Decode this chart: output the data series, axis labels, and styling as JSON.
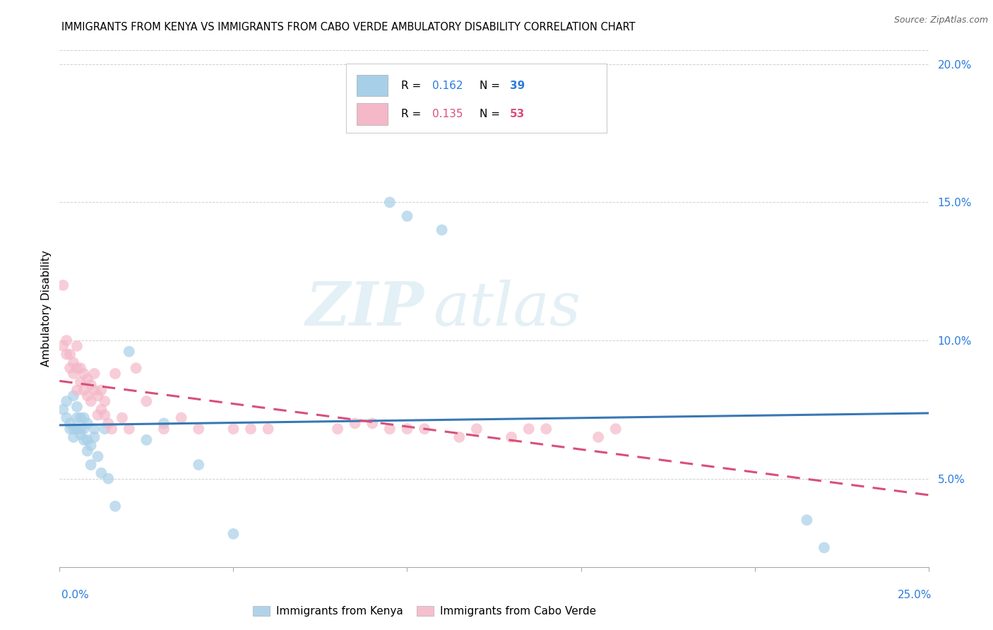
{
  "title": "IMMIGRANTS FROM KENYA VS IMMIGRANTS FROM CABO VERDE AMBULATORY DISABILITY CORRELATION CHART",
  "source": "Source: ZipAtlas.com",
  "ylabel": "Ambulatory Disability",
  "xlim": [
    0.0,
    0.25
  ],
  "ylim": [
    0.018,
    0.205
  ],
  "yticks": [
    0.05,
    0.1,
    0.15,
    0.2
  ],
  "ytick_labels": [
    "5.0%",
    "10.0%",
    "15.0%",
    "20.0%"
  ],
  "xticks": [
    0.0,
    0.05,
    0.1,
    0.15,
    0.2,
    0.25
  ],
  "legend_r1": "0.162",
  "legend_n1": "39",
  "legend_r2": "0.135",
  "legend_n2": "53",
  "watermark_zip": "ZIP",
  "watermark_atlas": "atlas",
  "kenya_color": "#a8cfe8",
  "cabo_verde_color": "#f4b8c8",
  "kenya_line_color": "#3878b4",
  "cabo_verde_line_color": "#d94f7a",
  "kenya_x": [
    0.001,
    0.002,
    0.002,
    0.003,
    0.003,
    0.004,
    0.004,
    0.004,
    0.005,
    0.005,
    0.005,
    0.006,
    0.006,
    0.006,
    0.007,
    0.007,
    0.007,
    0.008,
    0.008,
    0.008,
    0.009,
    0.009,
    0.01,
    0.01,
    0.011,
    0.012,
    0.013,
    0.014,
    0.016,
    0.02,
    0.025,
    0.03,
    0.04,
    0.05,
    0.095,
    0.1,
    0.11,
    0.215,
    0.22
  ],
  "kenya_y": [
    0.075,
    0.072,
    0.078,
    0.068,
    0.07,
    0.065,
    0.068,
    0.08,
    0.068,
    0.072,
    0.076,
    0.066,
    0.068,
    0.072,
    0.064,
    0.068,
    0.072,
    0.06,
    0.064,
    0.07,
    0.055,
    0.062,
    0.065,
    0.068,
    0.058,
    0.052,
    0.068,
    0.05,
    0.04,
    0.096,
    0.064,
    0.07,
    0.055,
    0.03,
    0.15,
    0.145,
    0.14,
    0.035,
    0.025
  ],
  "cabo_verde_x": [
    0.001,
    0.001,
    0.002,
    0.002,
    0.003,
    0.003,
    0.004,
    0.004,
    0.005,
    0.005,
    0.005,
    0.006,
    0.006,
    0.007,
    0.007,
    0.008,
    0.008,
    0.009,
    0.009,
    0.01,
    0.01,
    0.011,
    0.011,
    0.012,
    0.012,
    0.013,
    0.013,
    0.014,
    0.015,
    0.016,
    0.018,
    0.02,
    0.022,
    0.025,
    0.03,
    0.035,
    0.04,
    0.05,
    0.055,
    0.06,
    0.08,
    0.085,
    0.09,
    0.095,
    0.1,
    0.105,
    0.115,
    0.12,
    0.13,
    0.135,
    0.14,
    0.155,
    0.16
  ],
  "cabo_verde_y": [
    0.12,
    0.098,
    0.095,
    0.1,
    0.09,
    0.095,
    0.088,
    0.092,
    0.09,
    0.098,
    0.082,
    0.085,
    0.09,
    0.082,
    0.088,
    0.08,
    0.086,
    0.078,
    0.084,
    0.082,
    0.088,
    0.073,
    0.08,
    0.075,
    0.082,
    0.073,
    0.078,
    0.07,
    0.068,
    0.088,
    0.072,
    0.068,
    0.09,
    0.078,
    0.068,
    0.072,
    0.068,
    0.068,
    0.068,
    0.068,
    0.068,
    0.07,
    0.07,
    0.068,
    0.068,
    0.068,
    0.065,
    0.068,
    0.065,
    0.068,
    0.068,
    0.065,
    0.068
  ]
}
